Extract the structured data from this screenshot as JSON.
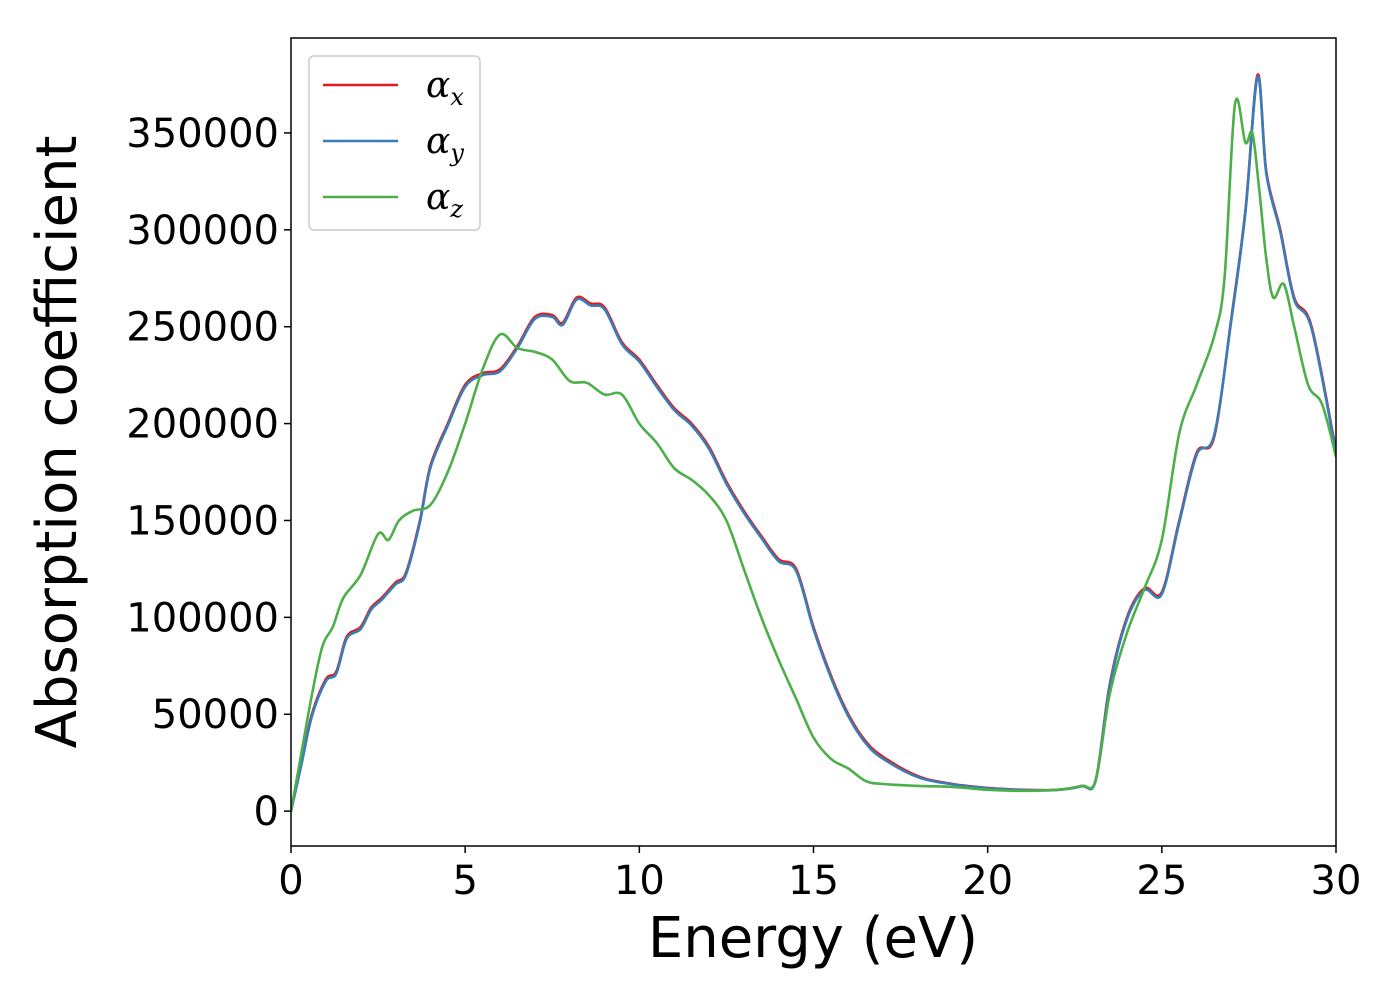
{
  "chart_data": {
    "type": "line",
    "title": "",
    "xlabel": "Energy (eV)",
    "ylabel": "Absorption coefficient",
    "xlim": [
      0,
      30
    ],
    "ylim": [
      -18000,
      399000
    ],
    "xticks": [
      0,
      5,
      10,
      15,
      20,
      25,
      30
    ],
    "yticks": [
      0,
      50000,
      100000,
      150000,
      200000,
      250000,
      300000,
      350000
    ],
    "grid": false,
    "legend_position": "top-left",
    "series": [
      {
        "name": "αx",
        "symbol": "α",
        "subscript": "x",
        "color": "#e41a1c",
        "x": [
          0,
          0.3,
          0.6,
          1.0,
          1.3,
          1.6,
          2.0,
          2.3,
          2.6,
          3.0,
          3.3,
          3.7,
          4.0,
          4.5,
          5.0,
          5.5,
          6.0,
          6.5,
          7.0,
          7.5,
          7.8,
          8.2,
          8.6,
          9.0,
          9.5,
          10.0,
          10.5,
          11.0,
          11.5,
          12.0,
          12.5,
          13.0,
          13.5,
          14.0,
          14.5,
          15.0,
          15.5,
          16.0,
          16.5,
          17.0,
          18.0,
          19.0,
          20.0,
          21.0,
          22.0,
          22.7,
          23.1,
          23.5,
          24.0,
          24.5,
          25.0,
          25.5,
          26.0,
          26.5,
          27.0,
          27.4,
          27.75,
          28.0,
          28.4,
          28.8,
          29.3,
          30.0
        ],
        "values": [
          0,
          25000,
          50000,
          68000,
          72000,
          90000,
          95000,
          105000,
          110000,
          118000,
          123000,
          150000,
          178000,
          200000,
          220000,
          226000,
          228000,
          240000,
          255000,
          256000,
          252000,
          265000,
          262000,
          260000,
          242000,
          233000,
          220000,
          208000,
          200000,
          188000,
          170000,
          155000,
          142000,
          130000,
          125000,
          95000,
          70000,
          50000,
          36000,
          28000,
          18000,
          14000,
          12000,
          11000,
          11000,
          13000,
          16000,
          65000,
          100000,
          115000,
          113000,
          150000,
          185000,
          193000,
          255000,
          310000,
          380000,
          330000,
          300000,
          265000,
          250000,
          186000
        ]
      },
      {
        "name": "αy",
        "symbol": "α",
        "subscript": "y",
        "color": "#377eb8",
        "x": [
          0,
          0.3,
          0.6,
          1.0,
          1.3,
          1.6,
          2.0,
          2.3,
          2.6,
          3.0,
          3.3,
          3.7,
          4.0,
          4.5,
          5.0,
          5.5,
          6.0,
          6.5,
          7.0,
          7.5,
          7.8,
          8.2,
          8.6,
          9.0,
          9.5,
          10.0,
          10.5,
          11.0,
          11.5,
          12.0,
          12.5,
          13.0,
          13.5,
          14.0,
          14.5,
          15.0,
          15.5,
          16.0,
          16.5,
          17.0,
          18.0,
          19.0,
          20.0,
          21.0,
          22.0,
          22.7,
          23.1,
          23.5,
          24.0,
          24.5,
          25.0,
          25.5,
          26.0,
          26.5,
          27.0,
          27.4,
          27.75,
          28.0,
          28.4,
          28.8,
          29.3,
          30.0
        ],
        "values": [
          0,
          24000,
          49000,
          67000,
          71000,
          89000,
          94000,
          104000,
          109000,
          117000,
          122000,
          149000,
          177000,
          199000,
          219000,
          225000,
          227000,
          239000,
          254000,
          255000,
          251000,
          264000,
          261000,
          259000,
          241000,
          232000,
          219000,
          207000,
          199000,
          187000,
          169000,
          154000,
          141000,
          129000,
          124000,
          94000,
          69000,
          49000,
          35000,
          27000,
          17500,
          13800,
          11800,
          10900,
          10900,
          12800,
          15800,
          64000,
          99000,
          114000,
          112000,
          149000,
          184000,
          194000,
          254000,
          309000,
          379000,
          329000,
          299000,
          264000,
          249000,
          185000
        ]
      },
      {
        "name": "αz",
        "symbol": "α",
        "subscript": "z",
        "color": "#4daf4a",
        "x": [
          0,
          0.3,
          0.6,
          0.9,
          1.2,
          1.5,
          2.0,
          2.5,
          2.8,
          3.1,
          3.5,
          4.0,
          4.5,
          5.0,
          5.5,
          6.0,
          6.5,
          7.0,
          7.5,
          8.0,
          8.5,
          9.0,
          9.5,
          10.0,
          10.5,
          11.0,
          11.5,
          12.0,
          12.5,
          13.0,
          13.5,
          14.0,
          14.5,
          15.0,
          15.5,
          16.0,
          16.5,
          17.0,
          18.0,
          19.0,
          20.0,
          21.0,
          22.0,
          22.7,
          23.1,
          23.5,
          24.0,
          24.5,
          25.0,
          25.5,
          26.0,
          26.5,
          26.8,
          27.1,
          27.4,
          27.6,
          27.8,
          28.0,
          28.2,
          28.5,
          28.8,
          29.2,
          29.6,
          30.0
        ],
        "values": [
          0,
          30000,
          60000,
          85000,
          95000,
          110000,
          122000,
          143000,
          140000,
          150000,
          155000,
          158000,
          175000,
          200000,
          228000,
          246000,
          239000,
          237000,
          233000,
          222000,
          221000,
          215000,
          215000,
          200000,
          190000,
          177000,
          171000,
          163000,
          150000,
          125000,
          100000,
          78000,
          58000,
          38000,
          27000,
          22000,
          15500,
          14000,
          13000,
          12500,
          11000,
          10500,
          11000,
          13000,
          16000,
          60000,
          92000,
          115000,
          140000,
          195000,
          220000,
          245000,
          275000,
          365000,
          345000,
          350000,
          320000,
          285000,
          265000,
          272000,
          250000,
          220000,
          210000,
          183000
        ]
      }
    ]
  }
}
